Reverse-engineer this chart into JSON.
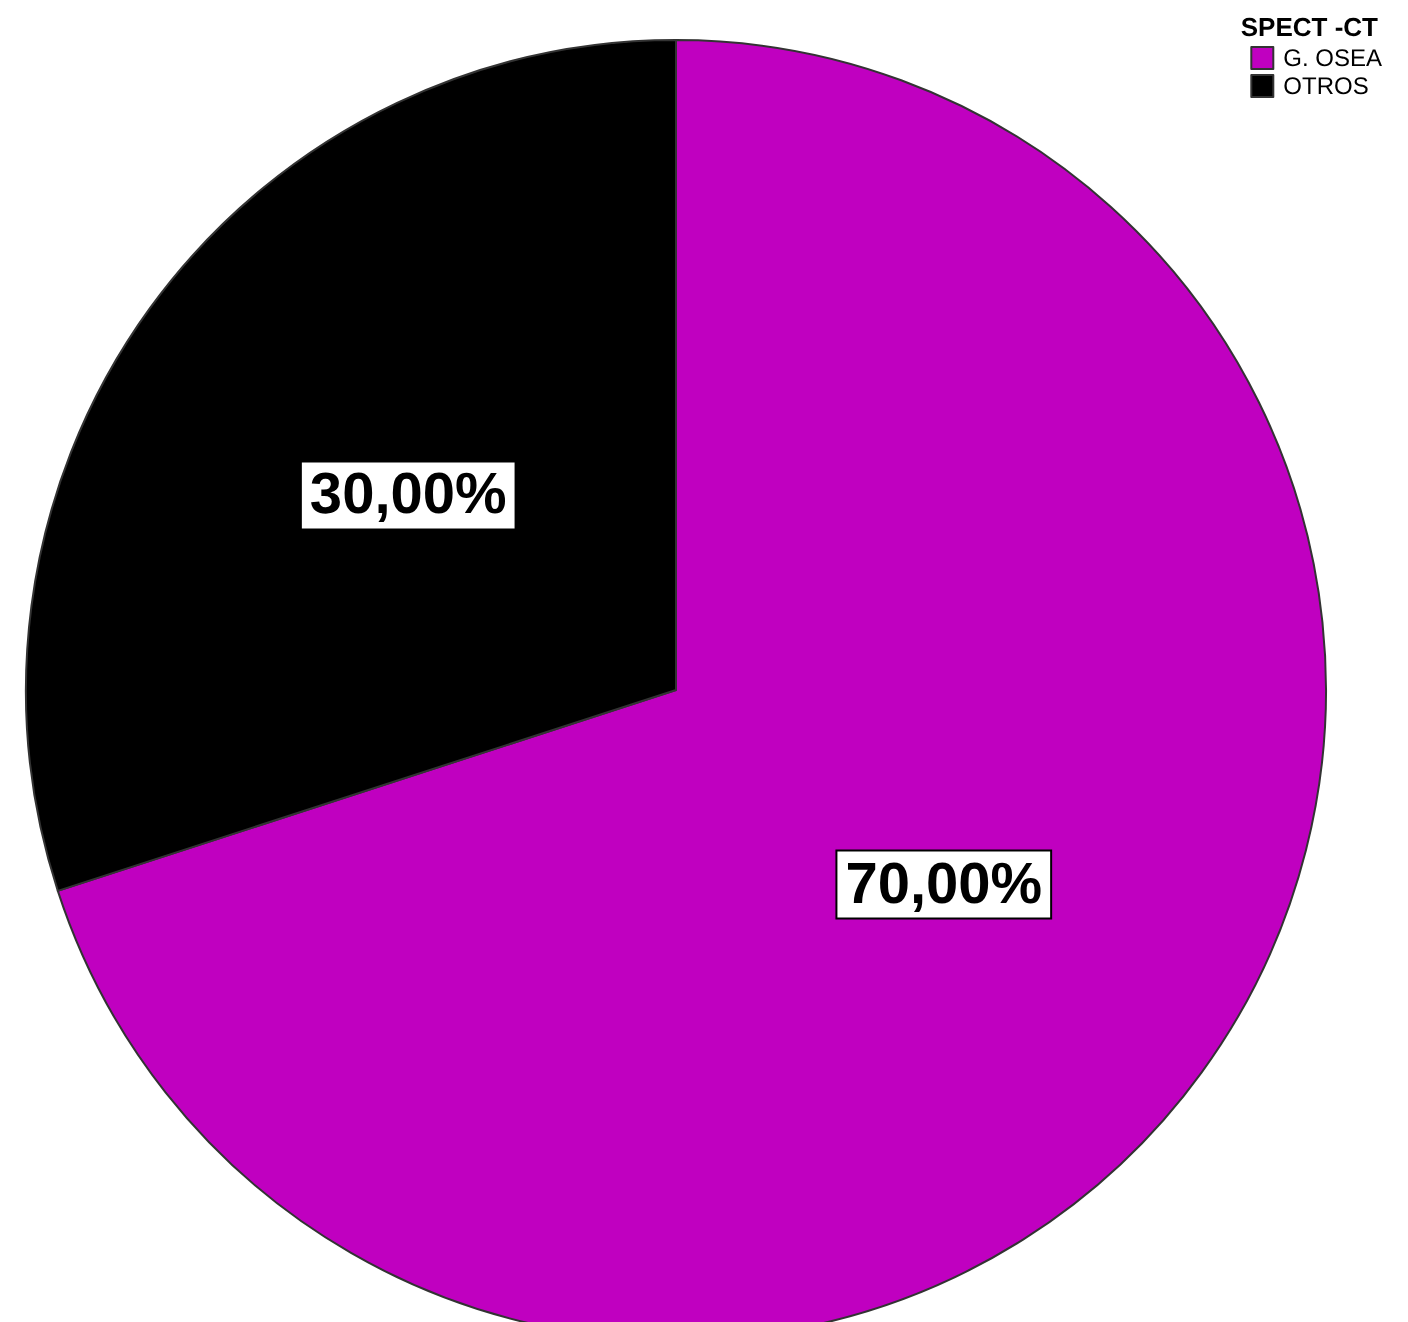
{
  "chart_data": {
    "type": "pie",
    "legend_title": "SPECT -CT",
    "legend": "top right",
    "categories": [
      "G. OSEA",
      "OTROS"
    ],
    "values": [
      70,
      30
    ],
    "colors": [
      "#c000c0",
      "#000000"
    ],
    "value_labels": [
      "70,00%",
      "30,00%"
    ]
  }
}
